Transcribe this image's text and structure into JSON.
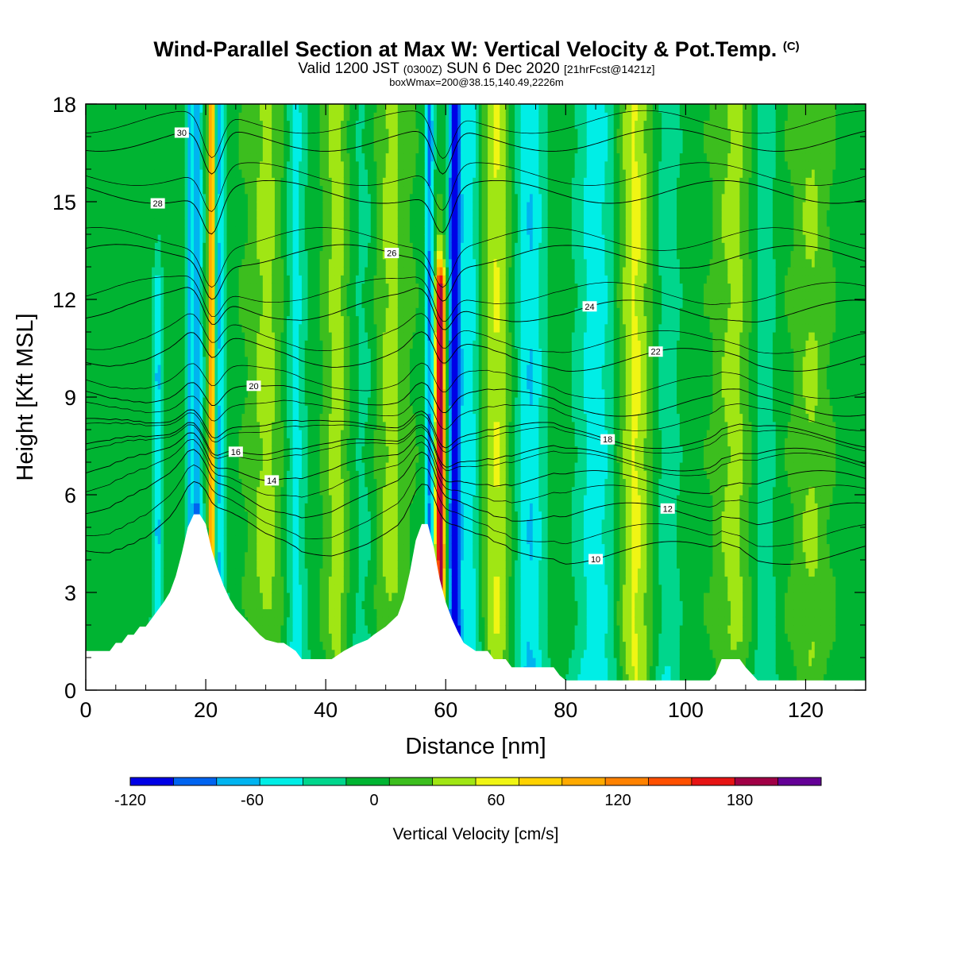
{
  "title": "Wind-Parallel Section at Max W: Vertical Velocity & Pot.Temp.",
  "title_mark": "(C)",
  "subtitle": {
    "valid": "Valid 1200 JST",
    "zulu": "(0300Z)",
    "date": "SUN 6 Dec 2020",
    "fcst": "[21hrFcst@1421z]"
  },
  "subsubtitle": "boxWmax=200@38.15,140.49,2226m",
  "chart_data": {
    "type": "heatmap",
    "xlabel": "Distance [nm]",
    "ylabel": "Height [Kft MSL]",
    "xlim": [
      0,
      130
    ],
    "ylim": [
      0,
      18
    ],
    "x_ticks": [
      0,
      20,
      40,
      60,
      80,
      100,
      120
    ],
    "y_ticks": [
      0,
      3,
      6,
      9,
      12,
      15,
      18
    ],
    "colorbar": {
      "label": "Vertical Velocity [cm/s]",
      "tick_labels": [
        "-120",
        "-60",
        "0",
        "60",
        "120",
        "180"
      ],
      "tick_values": [
        -120,
        -60,
        0,
        60,
        120,
        180
      ],
      "range": [
        -120,
        220
      ],
      "colors": [
        "#0000e6",
        "#0064f0",
        "#00b4f0",
        "#00eee6",
        "#00d68c",
        "#00b432",
        "#3cbe1e",
        "#a0e614",
        "#f0f514",
        "#ffd200",
        "#ffaa00",
        "#ff8200",
        "#ff5000",
        "#e61414",
        "#a00046",
        "#640096"
      ]
    },
    "terrain": [
      [
        0,
        1.2
      ],
      [
        2,
        1.2
      ],
      [
        4,
        1.2
      ],
      [
        5,
        1.45
      ],
      [
        6,
        1.45
      ],
      [
        7,
        1.7
      ],
      [
        8,
        1.7
      ],
      [
        9,
        1.95
      ],
      [
        10,
        1.95
      ],
      [
        11,
        2.2
      ],
      [
        12,
        2.45
      ],
      [
        13,
        2.7
      ],
      [
        14,
        3.0
      ],
      [
        15,
        3.5
      ],
      [
        16,
        4.2
      ],
      [
        17,
        5.0
      ],
      [
        18,
        5.4
      ],
      [
        19,
        5.4
      ],
      [
        20,
        5.1
      ],
      [
        21,
        4.3
      ],
      [
        22,
        3.7
      ],
      [
        23,
        3.2
      ],
      [
        24,
        2.8
      ],
      [
        25,
        2.5
      ],
      [
        26,
        2.3
      ],
      [
        27,
        2.1
      ],
      [
        28,
        1.9
      ],
      [
        29,
        1.7
      ],
      [
        30,
        1.55
      ],
      [
        32,
        1.45
      ],
      [
        33,
        1.45
      ],
      [
        35,
        1.2
      ],
      [
        36,
        0.95
      ],
      [
        37,
        0.95
      ],
      [
        41,
        0.95
      ],
      [
        43,
        1.2
      ],
      [
        45,
        1.4
      ],
      [
        47,
        1.55
      ],
      [
        48,
        1.7
      ],
      [
        50,
        1.95
      ],
      [
        52,
        2.3
      ],
      [
        53,
        2.8
      ],
      [
        54,
        3.6
      ],
      [
        55,
        4.6
      ],
      [
        56,
        5.1
      ],
      [
        57,
        5.1
      ],
      [
        58,
        4.4
      ],
      [
        59,
        3.4
      ],
      [
        60,
        2.7
      ],
      [
        61,
        2.2
      ],
      [
        62,
        1.8
      ],
      [
        63,
        1.45
      ],
      [
        65,
        1.2
      ],
      [
        67,
        1.2
      ],
      [
        68,
        0.95
      ],
      [
        70,
        0.95
      ],
      [
        71,
        0.7
      ],
      [
        78,
        0.7
      ],
      [
        79,
        0.45
      ],
      [
        80,
        0.3
      ],
      [
        104,
        0.3
      ],
      [
        105,
        0.5
      ],
      [
        106,
        0.95
      ],
      [
        109,
        0.95
      ],
      [
        110,
        0.7
      ],
      [
        111,
        0.5
      ],
      [
        112,
        0.3
      ],
      [
        130,
        0.3
      ]
    ],
    "features": [
      {
        "x": 12,
        "w": 0.9,
        "top": 12.5,
        "value": -55
      },
      {
        "x": 17.2,
        "w": 0.5,
        "top": 18,
        "value": -50
      },
      {
        "x": 18.5,
        "w": 0.9,
        "top": 18,
        "value": -75
      },
      {
        "x": 21,
        "w": 0.55,
        "top": 18,
        "value": 130
      },
      {
        "x": 22.3,
        "w": 0.9,
        "top": 18,
        "value": -60
      },
      {
        "x": 30,
        "w": 3.0,
        "top": 18,
        "value": 35
      },
      {
        "x": 35,
        "w": 1.8,
        "top": 18,
        "value": -40
      },
      {
        "x": 42,
        "w": 2.2,
        "top": 18,
        "value": 40
      },
      {
        "x": 47,
        "w": 3.0,
        "top": 18,
        "value": -35
      },
      {
        "x": 50,
        "w": 3.5,
        "top": 18,
        "value": 45
      },
      {
        "x": 57.3,
        "w": 0.7,
        "top": 18,
        "value": -80
      },
      {
        "x": 59.1,
        "w": 0.8,
        "top": 12.5,
        "value": 195
      },
      {
        "x": 61.5,
        "w": 1.0,
        "top": 18,
        "value": -135
      },
      {
        "x": 64,
        "w": 1.8,
        "top": 18,
        "value": -45
      },
      {
        "x": 68.5,
        "w": 2.2,
        "top": 18,
        "value": 50
      },
      {
        "x": 74,
        "w": 2.4,
        "top": 18,
        "value": -55
      },
      {
        "x": 85,
        "w": 3.5,
        "top": 18,
        "value": -45
      },
      {
        "x": 91.5,
        "w": 2.5,
        "top": 18,
        "value": 55
      },
      {
        "x": 97,
        "w": 2.0,
        "top": 18,
        "value": -30
      },
      {
        "x": 108,
        "w": 3.0,
        "top": 18,
        "value": 35
      },
      {
        "x": 113,
        "w": 2.0,
        "top": 18,
        "value": -30
      },
      {
        "x": 121,
        "w": 3.0,
        "top": 18,
        "value": 30
      }
    ],
    "theta_contours": [
      {
        "value": 10,
        "base": 4.1,
        "label_x": 85
      },
      {
        "value": 12,
        "base": 5.3,
        "label_x": 97
      },
      {
        "value": 14,
        "base": 6.3,
        "label_x": 31
      },
      {
        "value": 16,
        "base": 7.0,
        "label_x": 25
      },
      {
        "value": 18,
        "base": 7.7,
        "label_x": 87
      },
      {
        "value": 20,
        "base": 8.7,
        "label_x": 28
      },
      {
        "value": 22,
        "base": 10.1,
        "label_x": 95
      },
      {
        "value": 24,
        "base": 11.6,
        "label_x": 84
      },
      {
        "value": 26,
        "base": 13.3,
        "label_x": 51
      },
      {
        "value": 28,
        "base": 15.3,
        "label_x": 12
      },
      {
        "value": 30,
        "base": 16.9,
        "label_x": 16
      }
    ]
  }
}
